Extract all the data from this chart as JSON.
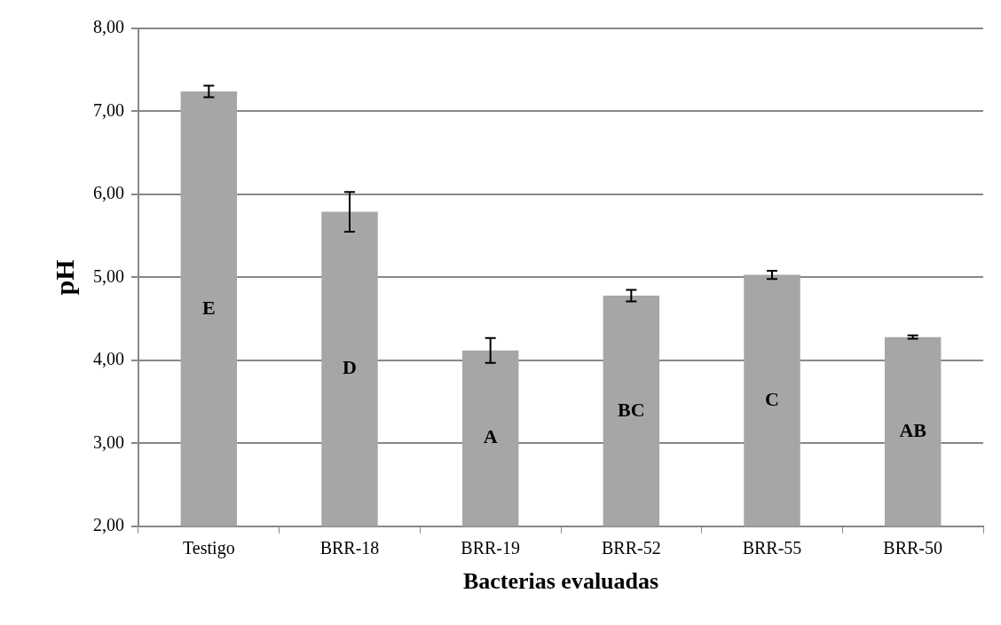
{
  "chart_data": {
    "type": "bar",
    "xlabel": "Bacterias evaluadas",
    "ylabel": "pH",
    "categories": [
      "Testigo",
      "BRR-18",
      "BRR-19",
      "BRR-52",
      "BRR-55",
      "BRR-50"
    ],
    "values": [
      7.24,
      5.79,
      4.12,
      4.78,
      5.03,
      4.28
    ],
    "errors": [
      0.07,
      0.24,
      0.15,
      0.07,
      0.05,
      0.02
    ],
    "color": "#a6a6a6",
    "ylim": [
      2,
      8
    ],
    "yticks": [
      {
        "value": 2,
        "label": "2,00"
      },
      {
        "value": 3,
        "label": "3,00"
      },
      {
        "value": 4,
        "label": "4,00"
      },
      {
        "value": 5,
        "label": "5,00"
      },
      {
        "value": 6,
        "label": "6,00"
      },
      {
        "value": 7,
        "label": "7,00"
      },
      {
        "value": 8,
        "label": "8,00"
      }
    ],
    "grid": "y",
    "value_labels": [
      "E",
      "D",
      "A",
      "BC",
      "C",
      "AB"
    ]
  }
}
